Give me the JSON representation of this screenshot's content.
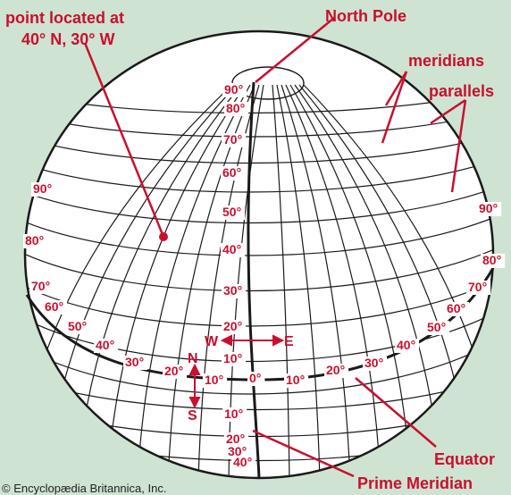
{
  "callouts": {
    "point_line1": "point located at",
    "point_line2": "40° N, 30° W",
    "north_pole": "North Pole",
    "meridians": "meridians",
    "parallels": "parallels",
    "equator": "Equator",
    "prime_meridian": "Prime Meridian"
  },
  "compass": {
    "west": "W",
    "east": "E",
    "north": "N",
    "south": "S"
  },
  "center_latitudes": [
    "90°",
    "80°",
    "70°",
    "60°",
    "50°",
    "40°",
    "30°",
    "20°",
    "10°",
    "0°",
    "10°",
    "20°",
    "30°",
    "40°"
  ],
  "left_latitudes": [
    "90°",
    "80°",
    "70°",
    "60°",
    "50°",
    "40°",
    "30°",
    "20°",
    "10°"
  ],
  "right_latitudes": [
    "90°",
    "80°",
    "70°",
    "60°",
    "50°",
    "40°",
    "30°",
    "20°"
  ],
  "equator_west": [
    "20°",
    "10°"
  ],
  "equator_east": [
    "10°",
    "20°",
    "30°",
    "40°"
  ],
  "credit": "© Encyclopædia Britannica, Inc.",
  "colors": {
    "background": "#cfe3d2",
    "label": "#c8102e",
    "grid": "#1a1a1a",
    "globe": "#ffffff"
  }
}
